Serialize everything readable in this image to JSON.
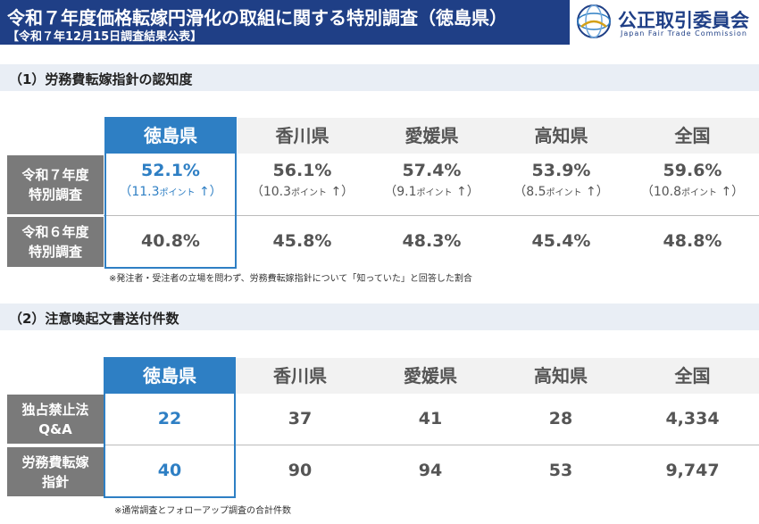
{
  "header": {
    "title": "令和７年度価格転嫁円滑化の取組に関する特別調査（徳島県）",
    "subtitle": "【令和７年12月15日調査結果公表】"
  },
  "logo": {
    "name": "公正取引委員会",
    "english": "Japan Fair Trade Commission"
  },
  "section1": {
    "title": "（1）労務費転嫁指針の認知度",
    "columns": [
      "徳島県",
      "香川県",
      "愛媛県",
      "高知県",
      "全国"
    ],
    "rows": [
      {
        "label_line1": "令和７年度",
        "label_line2": "特別調査",
        "values": [
          "52.1%",
          "56.1%",
          "57.4%",
          "53.9%",
          "59.6%"
        ],
        "changes": [
          {
            "open": "（",
            "num": "11.3",
            "unit": "ポイント",
            "arrow": "↑",
            "close": "）"
          },
          {
            "open": "（",
            "num": "10.3",
            "unit": "ポイント",
            "arrow": "↑",
            "close": "）"
          },
          {
            "open": "（",
            "num": "9.1",
            "unit": "ポイント",
            "arrow": "↑",
            "close": "）"
          },
          {
            "open": "（",
            "num": "8.5",
            "unit": "ポイント",
            "arrow": "↑",
            "close": "）"
          },
          {
            "open": "（",
            "num": "10.8",
            "unit": "ポイント",
            "arrow": "↑",
            "close": "）"
          }
        ]
      },
      {
        "label_line1": "令和６年度",
        "label_line2": "特別調査",
        "values": [
          "40.8%",
          "45.8%",
          "48.3%",
          "45.4%",
          "48.8%"
        ]
      }
    ],
    "note": "※発注者・受注者の立場を問わず、労務費転嫁指針について「知っていた」と回答した割合"
  },
  "section2": {
    "title": "（2）注意喚起文書送付件数",
    "columns": [
      "徳島県",
      "香川県",
      "愛媛県",
      "高知県",
      "全国"
    ],
    "rows": [
      {
        "label_line1": "独占禁止法",
        "label_line2": "Q&A",
        "values": [
          "22",
          "37",
          "41",
          "28",
          "4,334"
        ]
      },
      {
        "label_line1": "労務費転嫁",
        "label_line2": "指針",
        "values": [
          "40",
          "90",
          "94",
          "53",
          "9,747"
        ]
      }
    ],
    "note": "※通常調査とフォローアップ調査の合計件数"
  },
  "colors": {
    "header_bg": "#1f3f86",
    "highlight": "#2e7fc4",
    "row_head_bg": "#7a7a7a",
    "section_bg": "#e9eef5"
  }
}
